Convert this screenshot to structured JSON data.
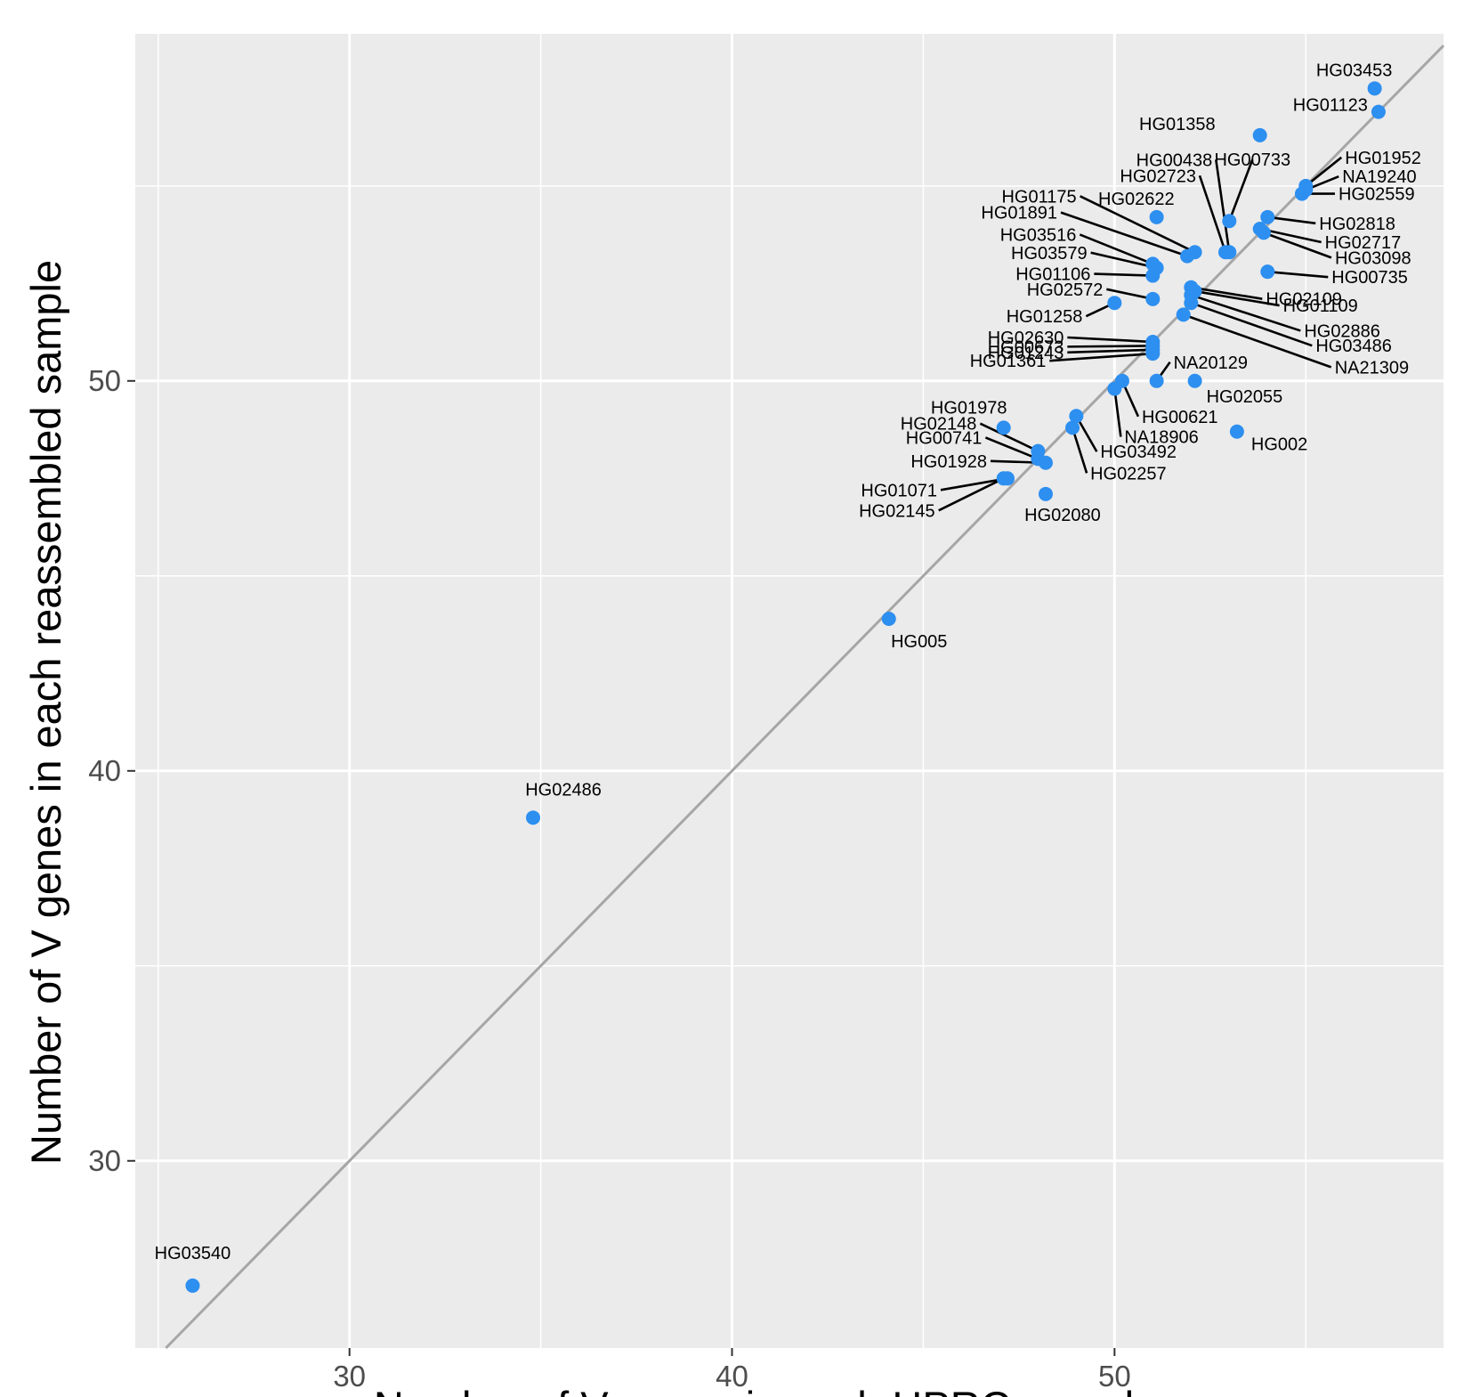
{
  "chart_data": {
    "type": "scatter",
    "title": "",
    "xlabel": "Number of V genes in each HPRC sample",
    "ylabel": "Number of V genes in each reassembled sample",
    "xlim": [
      24.4,
      58.6
    ],
    "ylim": [
      25.2,
      58.9
    ],
    "x_ticks": [
      30,
      40,
      50
    ],
    "y_ticks": [
      30,
      40,
      50
    ],
    "grid": true,
    "reference_line": "y = x",
    "colors": {
      "point": "#2d8ff0",
      "reference_line": "#a6a6a6",
      "panel": "#ebebeb",
      "grid": "#ffffff",
      "leader": "#000000"
    },
    "points": [
      {
        "label": "HG03540",
        "x": 25.9,
        "y": 26.8
      },
      {
        "label": "HG02486",
        "x": 34.8,
        "y": 38.8
      },
      {
        "label": "HG005",
        "x": 44.1,
        "y": 43.9
      },
      {
        "label": "HG02080",
        "x": 48.2,
        "y": 47.1
      },
      {
        "label": "HG01071",
        "x": 47.2,
        "y": 47.5
      },
      {
        "label": "HG02145",
        "x": 47.1,
        "y": 47.5
      },
      {
        "label": "HG01928",
        "x": 48.2,
        "y": 47.9
      },
      {
        "label": "HG00741",
        "x": 48.0,
        "y": 48.0
      },
      {
        "label": "HG02148",
        "x": 48.0,
        "y": 48.2
      },
      {
        "label": "HG01978",
        "x": 47.1,
        "y": 48.8
      },
      {
        "label": "HG02257",
        "x": 48.9,
        "y": 48.8
      },
      {
        "label": "HG03492",
        "x": 49.0,
        "y": 49.1
      },
      {
        "label": "NA18906",
        "x": 50.0,
        "y": 49.8
      },
      {
        "label": "HG00621",
        "x": 50.2,
        "y": 50.0
      },
      {
        "label": "HG002",
        "x": 53.2,
        "y": 48.7
      },
      {
        "label": "HG02055",
        "x": 52.1,
        "y": 50.0
      },
      {
        "label": "NA20129",
        "x": 51.1,
        "y": 50.0
      },
      {
        "label": "HG01361",
        "x": 51.0,
        "y": 50.7
      },
      {
        "label": "HG01243",
        "x": 51.0,
        "y": 50.8
      },
      {
        "label": "HG00673",
        "x": 51.0,
        "y": 50.9
      },
      {
        "label": "HG02630",
        "x": 51.0,
        "y": 51.0
      },
      {
        "label": "HG01258",
        "x": 50.0,
        "y": 52.0
      },
      {
        "label": "HG02572",
        "x": 51.0,
        "y": 52.1
      },
      {
        "label": "NA21309",
        "x": 51.8,
        "y": 51.7
      },
      {
        "label": "HG03486",
        "x": 52.0,
        "y": 52.0
      },
      {
        "label": "HG02886",
        "x": 52.0,
        "y": 52.2
      },
      {
        "label": "HG01109",
        "x": 52.1,
        "y": 52.3
      },
      {
        "label": "HG02109",
        "x": 52.0,
        "y": 52.4
      },
      {
        "label": "HG01106",
        "x": 51.0,
        "y": 52.7
      },
      {
        "label": "HG03579",
        "x": 51.1,
        "y": 52.9
      },
      {
        "label": "HG03516",
        "x": 51.0,
        "y": 53.0
      },
      {
        "label": "HG00735",
        "x": 54.0,
        "y": 52.8
      },
      {
        "label": "HG01891",
        "x": 51.9,
        "y": 53.2
      },
      {
        "label": "HG01175",
        "x": 52.1,
        "y": 53.3
      },
      {
        "label": "HG02622",
        "x": 51.1,
        "y": 54.2
      },
      {
        "label": "HG02723",
        "x": 52.9,
        "y": 53.3
      },
      {
        "label": "HG00438",
        "x": 53.0,
        "y": 53.3
      },
      {
        "label": "HG00733",
        "x": 53.0,
        "y": 54.1
      },
      {
        "label": "HG03098",
        "x": 53.9,
        "y": 53.8
      },
      {
        "label": "HG02717",
        "x": 53.8,
        "y": 53.9
      },
      {
        "label": "HG02818",
        "x": 54.0,
        "y": 54.2
      },
      {
        "label": "HG02559",
        "x": 54.9,
        "y": 54.8
      },
      {
        "label": "NA19240",
        "x": 55.0,
        "y": 54.9
      },
      {
        "label": "HG01952",
        "x": 55.0,
        "y": 55.0
      },
      {
        "label": "HG01358",
        "x": 53.8,
        "y": 56.3
      },
      {
        "label": "HG01123",
        "x": 56.9,
        "y": 56.9
      },
      {
        "label": "HG03453",
        "x": 56.8,
        "y": 57.5
      }
    ]
  }
}
